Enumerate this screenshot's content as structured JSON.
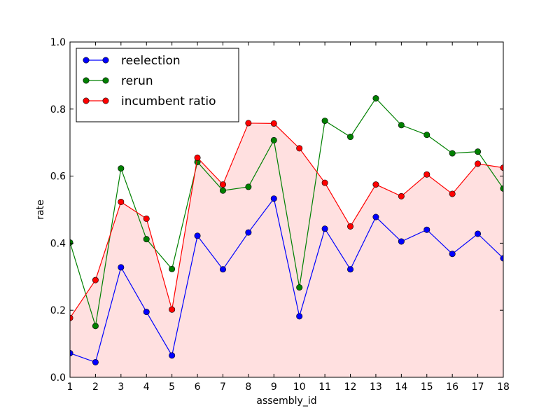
{
  "chart_data": {
    "type": "line",
    "xlabel": "assembly_id",
    "ylabel": "rate",
    "xlim": [
      1,
      18
    ],
    "ylim": [
      0.0,
      1.0
    ],
    "x": [
      1,
      2,
      3,
      4,
      5,
      6,
      7,
      8,
      9,
      10,
      11,
      12,
      13,
      14,
      15,
      16,
      17,
      18
    ],
    "x_ticks": [
      "1",
      "2",
      "3",
      "4",
      "5",
      "6",
      "7",
      "8",
      "9",
      "10",
      "11",
      "12",
      "13",
      "14",
      "15",
      "16",
      "17",
      "18"
    ],
    "y_ticks": [
      "0.0",
      "0.2",
      "0.4",
      "0.6",
      "0.8",
      "1.0"
    ],
    "y_tick_values": [
      0.0,
      0.2,
      0.4,
      0.6,
      0.8,
      1.0
    ],
    "legend_position": "upper-left",
    "grid": false,
    "fill_under_series": "incumbent ratio",
    "fill_color": "#ffe0e0",
    "series": [
      {
        "name": "reelection",
        "color": "#0000ff",
        "values": [
          0.072,
          0.045,
          0.328,
          0.195,
          0.065,
          0.422,
          0.322,
          0.432,
          0.533,
          0.182,
          0.443,
          0.322,
          0.478,
          0.405,
          0.44,
          0.368,
          0.428,
          0.355
        ]
      },
      {
        "name": "rerun",
        "color": "#008000",
        "values": [
          0.402,
          0.153,
          0.623,
          0.412,
          0.323,
          0.642,
          0.557,
          0.568,
          0.707,
          0.268,
          0.765,
          0.717,
          0.832,
          0.752,
          0.723,
          0.668,
          0.673,
          0.563
        ]
      },
      {
        "name": "incumbent ratio",
        "color": "#ff0000",
        "values": [
          0.177,
          0.29,
          0.523,
          0.473,
          0.202,
          0.655,
          0.575,
          0.758,
          0.757,
          0.683,
          0.58,
          0.45,
          0.575,
          0.54,
          0.605,
          0.547,
          0.637,
          0.625
        ]
      }
    ]
  }
}
